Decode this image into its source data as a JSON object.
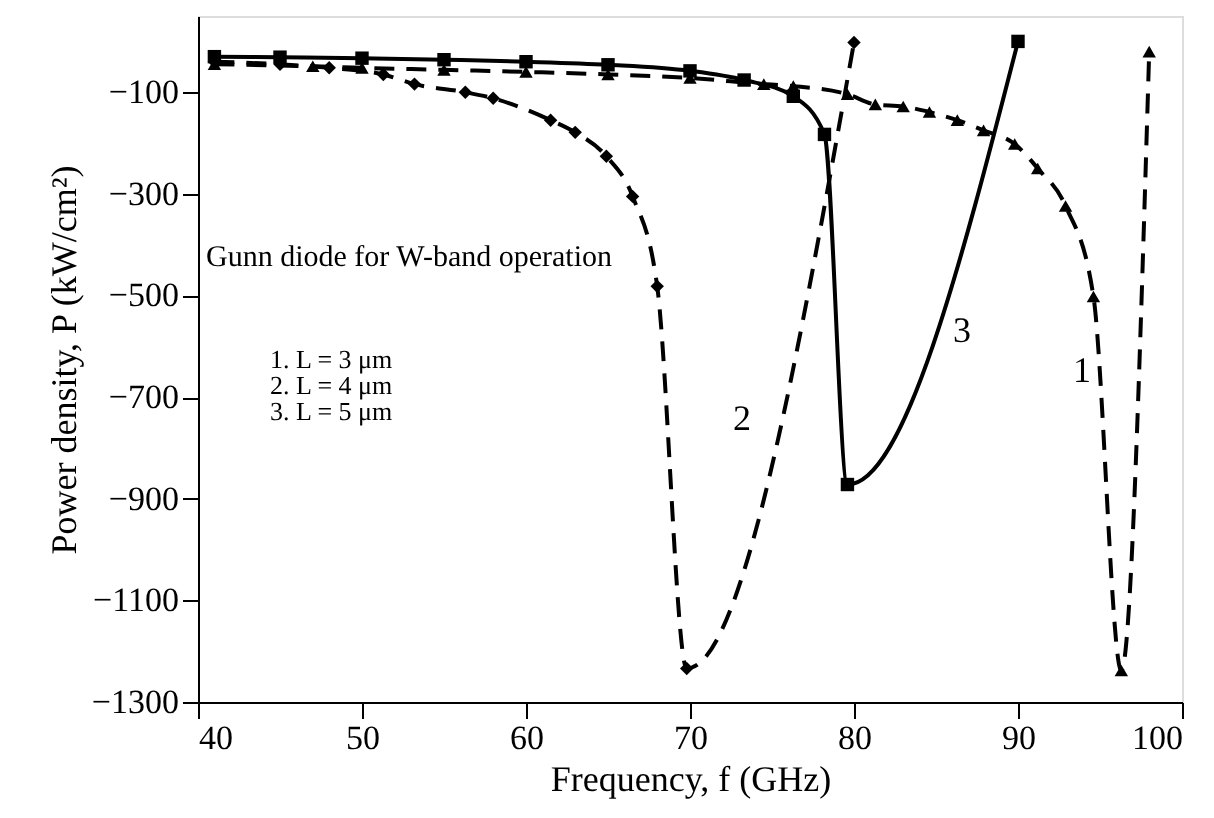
{
  "chart_data": {
    "type": "line",
    "xlabel": "Frequency, f (GHz)",
    "ylabel": "Power density, P (kW/cm²)",
    "xlim": [
      40,
      100
    ],
    "xticks": [
      40,
      50,
      60,
      70,
      80,
      90,
      100
    ],
    "ylim": [
      -1300,
      50
    ],
    "yticks": [
      -100,
      -300,
      -500,
      -700,
      -900,
      -1100,
      -1300
    ],
    "grid": false,
    "series": [
      {
        "color": "#000000",
        "marker": "triangle",
        "line_style": "dashed",
        "x": [
          41,
          47,
          50,
          55,
          60,
          65,
          70,
          74.5,
          76.3,
          79.6,
          81.3,
          83,
          84.6,
          86.3,
          87.9,
          89.8,
          91.2,
          92.9,
          94.6,
          96.3,
          98
        ],
        "values": [
          -45,
          -49,
          -52,
          -56,
          -60,
          -65,
          -72,
          -84,
          -88,
          -104,
          -124,
          -128,
          -139,
          -155,
          -175,
          -202,
          -250,
          -324,
          -502,
          -1238,
          -20
        ]
      },
      {
        "color": "#000000",
        "marker": "diamond",
        "line_style": "dashed",
        "x": [
          41,
          45,
          48,
          51.3,
          53.2,
          56.3,
          58,
          61.5,
          63,
          64.9,
          66.5,
          68,
          69.8,
          80
        ],
        "values": [
          -40,
          -45,
          -52,
          -65,
          -84,
          -100,
          -112,
          -155,
          -179,
          -226,
          -305,
          -482,
          -1234,
          -2
        ]
      },
      {
        "color": "#000000",
        "marker": "square",
        "line_style": "solid",
        "x": [
          41,
          45,
          50,
          55,
          60,
          65,
          70,
          73.3,
          76.3,
          78.2,
          79.6,
          90
        ],
        "values": [
          -30,
          -31,
          -33,
          -36,
          -40,
          -46,
          -58,
          -76,
          -108,
          -183,
          -872,
          0
        ]
      }
    ],
    "annotations": [
      "1",
      "2",
      "3",
      "Gunn diode for W-band operation",
      "1. L = 3 μm",
      "2. L = 4 μm",
      "3. L = 5 μm"
    ]
  }
}
